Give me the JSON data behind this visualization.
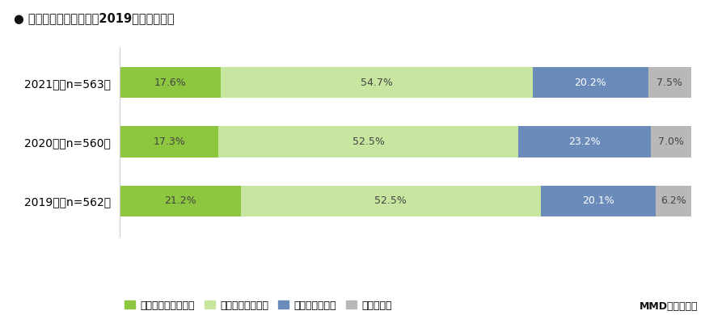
{
  "title": "● スマホ依存の自覚　〷2019年からの比較",
  "years": [
    "2021年（n=563）",
    "2020年（n=560）",
    "2019年（n=562）"
  ],
  "values": [
    [
      17.6,
      54.7,
      20.2,
      7.5
    ],
    [
      17.3,
      52.5,
      23.2,
      7.0
    ],
    [
      21.2,
      52.5,
      20.1,
      6.2
    ]
  ],
  "colors": [
    "#8dc63f",
    "#c8e6a0",
    "#6b8cba",
    "#b8b8b8"
  ],
  "background_color": "#ffffff",
  "credit": "MMD研究所調べ",
  "bar_height": 0.52,
  "legend_labels": [
    "かなり依存している",
    "やや依存している",
    "依存していない",
    "わからない"
  ]
}
